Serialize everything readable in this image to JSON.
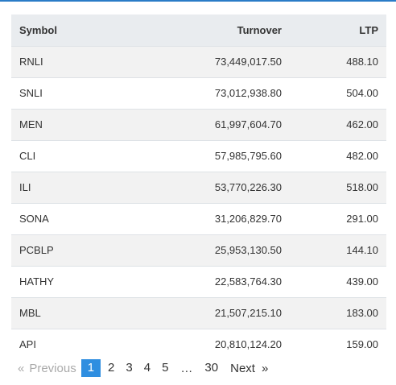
{
  "table": {
    "headers": {
      "symbol": "Symbol",
      "turnover": "Turnover",
      "ltp": "LTP"
    },
    "rows": [
      {
        "symbol": "RNLI",
        "turnover": "73,449,017.50",
        "ltp": "488.10"
      },
      {
        "symbol": "SNLI",
        "turnover": "73,012,938.80",
        "ltp": "504.00"
      },
      {
        "symbol": "MEN",
        "turnover": "61,997,604.70",
        "ltp": "462.00"
      },
      {
        "symbol": "CLI",
        "turnover": "57,985,795.60",
        "ltp": "482.00"
      },
      {
        "symbol": "ILI",
        "turnover": "53,770,226.30",
        "ltp": "518.00"
      },
      {
        "symbol": "SONA",
        "turnover": "31,206,829.70",
        "ltp": "291.00"
      },
      {
        "symbol": "PCBLP",
        "turnover": "25,953,130.50",
        "ltp": "144.10"
      },
      {
        "symbol": "HATHY",
        "turnover": "22,583,764.30",
        "ltp": "439.00"
      },
      {
        "symbol": "MBL",
        "turnover": "21,507,215.10",
        "ltp": "183.00"
      },
      {
        "symbol": "API",
        "turnover": "20,810,124.20",
        "ltp": "159.00"
      }
    ]
  },
  "pagination": {
    "prev_arrow": "«",
    "prev_label": "Previous",
    "pages": [
      "1",
      "2",
      "3",
      "4",
      "5"
    ],
    "ellipsis": "…",
    "last_page": "30",
    "next_label": "Next",
    "next_arrow": "»",
    "current_page": "1",
    "active_color": "#2f8ee0"
  },
  "colors": {
    "accent": "#2a7cc7",
    "header_bg": "#e9ecef",
    "stripe_bg": "#f2f2f2"
  }
}
